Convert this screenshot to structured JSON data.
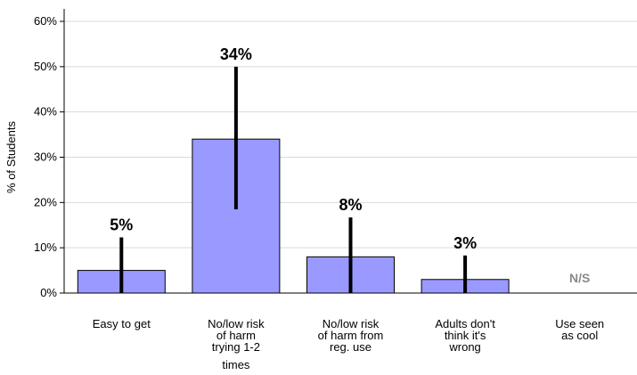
{
  "chart_data": {
    "type": "bar",
    "ylabel": "% of Students",
    "ylim": [
      0,
      60
    ],
    "yticks": [
      "0%",
      "10%",
      "20%",
      "30%",
      "40%",
      "50%",
      "60%"
    ],
    "grid": true,
    "colors": {
      "bar": "#9999ff",
      "bar_edge": "#000000",
      "error_bar": "#000000",
      "grid": "#d9d9d9",
      "ns_text": "#8a8a8a"
    },
    "categories": [
      [
        "Easy to get"
      ],
      [
        "No/low risk",
        "of harm",
        "trying 1-2",
        "times"
      ],
      [
        "No/low risk",
        "of harm from",
        "reg. use"
      ],
      [
        "Adults don't",
        "think it's",
        "wrong"
      ],
      [
        "Use seen",
        "as cool"
      ]
    ],
    "values": [
      5,
      34,
      8,
      3,
      null
    ],
    "error_low": [
      0,
      18.5,
      0,
      0,
      null
    ],
    "error_high": [
      12.3,
      50,
      16.7,
      8.3,
      null
    ],
    "data_labels": [
      "5%",
      "34%",
      "8%",
      "3%",
      "N/S"
    ]
  }
}
